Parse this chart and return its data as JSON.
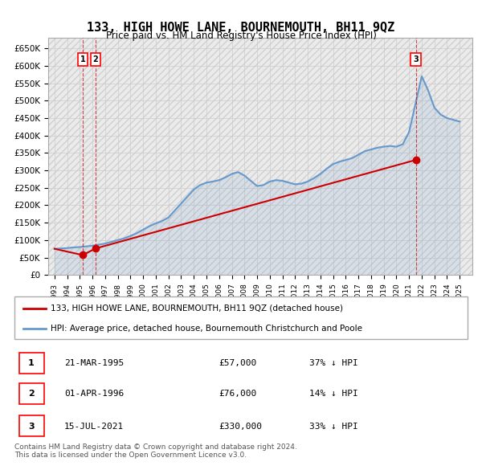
{
  "title": "133, HIGH HOWE LANE, BOURNEMOUTH, BH11 9QZ",
  "subtitle": "Price paid vs. HM Land Registry's House Price Index (HPI)",
  "ylabel_ticks": [
    "£0",
    "£50K",
    "£100K",
    "£150K",
    "£200K",
    "£250K",
    "£300K",
    "£350K",
    "£400K",
    "£450K",
    "£500K",
    "£550K",
    "£600K",
    "£650K"
  ],
  "ytick_values": [
    0,
    50000,
    100000,
    150000,
    200000,
    250000,
    300000,
    350000,
    400000,
    450000,
    500000,
    550000,
    600000,
    650000
  ],
  "xlim": [
    1992.5,
    2026
  ],
  "ylim": [
    0,
    680000
  ],
  "hpi_color": "#6699cc",
  "price_color": "#cc0000",
  "transaction_color": "#cc0000",
  "background_hatch_color": "#e8e8e8",
  "grid_color": "#cccccc",
  "transactions": [
    {
      "year": 1995.22,
      "price": 57000,
      "label": "1"
    },
    {
      "year": 1996.25,
      "price": 76000,
      "label": "2"
    },
    {
      "year": 2021.54,
      "price": 330000,
      "label": "3"
    }
  ],
  "legend_entries": [
    "133, HIGH HOWE LANE, BOURNEMOUTH, BH11 9QZ (detached house)",
    "HPI: Average price, detached house, Bournemouth Christchurch and Poole"
  ],
  "table_rows": [
    {
      "num": "1",
      "date": "21-MAR-1995",
      "price": "£57,000",
      "change": "37% ↓ HPI"
    },
    {
      "num": "2",
      "date": "01-APR-1996",
      "price": "£76,000",
      "change": "14% ↓ HPI"
    },
    {
      "num": "3",
      "date": "15-JUL-2021",
      "price": "£330,000",
      "change": "33% ↓ HPI"
    }
  ],
  "footnote": "Contains HM Land Registry data © Crown copyright and database right 2024.\nThis data is licensed under the Open Government Licence v3.0.",
  "hpi_years": [
    1993,
    1993.5,
    1994,
    1994.5,
    1995,
    1995.5,
    1996,
    1996.5,
    1997,
    1997.5,
    1998,
    1998.5,
    1999,
    1999.5,
    2000,
    2000.5,
    2001,
    2001.5,
    2002,
    2002.5,
    2003,
    2003.5,
    2004,
    2004.5,
    2005,
    2005.5,
    2006,
    2006.5,
    2007,
    2007.5,
    2008,
    2008.5,
    2009,
    2009.5,
    2010,
    2010.5,
    2011,
    2011.5,
    2012,
    2012.5,
    2013,
    2013.5,
    2014,
    2014.5,
    2015,
    2015.5,
    2016,
    2016.5,
    2017,
    2017.5,
    2018,
    2018.5,
    2019,
    2019.5,
    2020,
    2020.5,
    2021,
    2021.5,
    2022,
    2022.5,
    2023,
    2023.5,
    2024,
    2024.5,
    2025
  ],
  "hpi_values": [
    75000,
    76000,
    77000,
    79000,
    80000,
    82000,
    84000,
    87000,
    90000,
    95000,
    100000,
    105000,
    112000,
    120000,
    130000,
    140000,
    148000,
    155000,
    165000,
    185000,
    205000,
    225000,
    245000,
    258000,
    265000,
    268000,
    272000,
    280000,
    290000,
    295000,
    285000,
    270000,
    255000,
    258000,
    268000,
    272000,
    270000,
    265000,
    260000,
    262000,
    268000,
    278000,
    290000,
    305000,
    318000,
    325000,
    330000,
    335000,
    345000,
    355000,
    360000,
    365000,
    368000,
    370000,
    368000,
    375000,
    410000,
    490000,
    570000,
    530000,
    480000,
    460000,
    450000,
    445000,
    440000
  ],
  "price_paid_years": [
    1993,
    1995.22,
    1996.25,
    2021.54
  ],
  "price_paid_values": [
    75000,
    57000,
    76000,
    330000
  ]
}
